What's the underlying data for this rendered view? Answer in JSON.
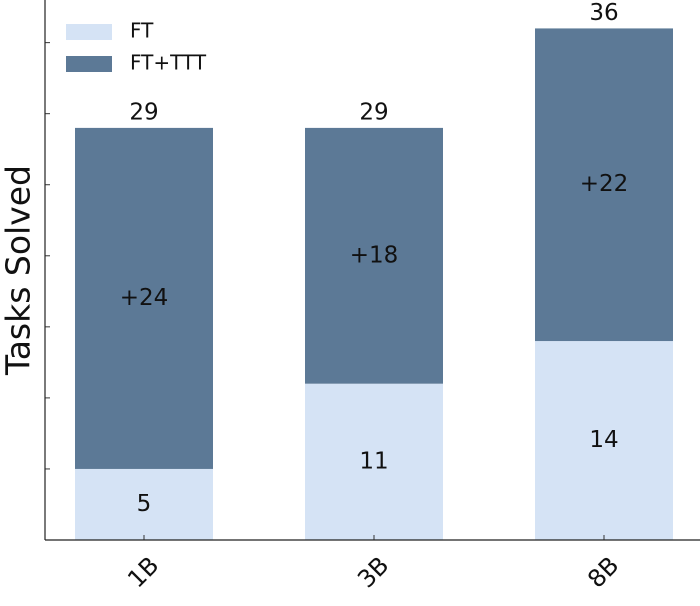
{
  "chart_data": {
    "type": "stacked-bar",
    "y_label": "Tasks Solved",
    "categories": [
      "1B",
      "3B",
      "8B"
    ],
    "series": [
      {
        "name": "FT",
        "color": "#d5e3f5",
        "values": [
          5,
          11,
          14
        ]
      },
      {
        "name": "FT+TTT",
        "color": "#5c7996",
        "values": [
          24,
          18,
          22
        ],
        "value_labels": [
          "+24",
          "+18",
          "+22"
        ]
      }
    ],
    "totals": [
      29,
      29,
      36
    ],
    "ylim": [
      0,
      38
    ],
    "yticks": [
      0,
      5,
      10,
      15,
      20,
      25,
      30,
      35
    ],
    "legend": "upper left"
  }
}
